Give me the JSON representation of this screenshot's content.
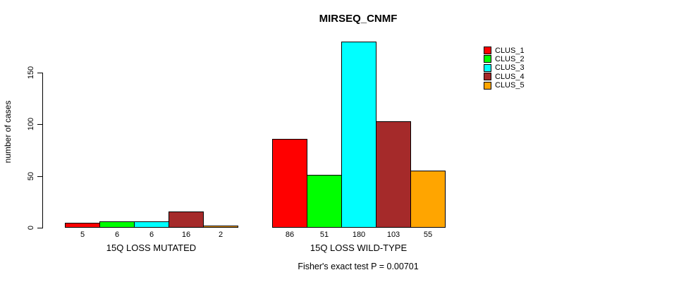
{
  "chart_data": {
    "type": "bar",
    "title": "MIRSEQ_CNMF",
    "ylabel": "number of cases",
    "ylim": [
      0,
      180
    ],
    "yticks": [
      0,
      50,
      100,
      150
    ],
    "grid": false,
    "legend_position": "right",
    "categories": [
      "15Q LOSS MUTATED",
      "15Q LOSS WILD-TYPE"
    ],
    "series": [
      {
        "name": "CLUS_1",
        "color": "#ff0000",
        "values": [
          5,
          86
        ]
      },
      {
        "name": "CLUS_2",
        "color": "#00ff00",
        "values": [
          6,
          51
        ]
      },
      {
        "name": "CLUS_3",
        "color": "#00ffff",
        "values": [
          6,
          180
        ]
      },
      {
        "name": "CLUS_4",
        "color": "#a52a2a",
        "values": [
          16,
          103
        ]
      },
      {
        "name": "CLUS_5",
        "color": "#ffa500",
        "values": [
          2,
          55
        ]
      }
    ],
    "bar_value_labels": {
      "15Q LOSS MUTATED": [
        5,
        6,
        6,
        16,
        2
      ],
      "15Q LOSS WILD-TYPE": [
        86,
        51,
        180,
        103,
        55
      ]
    },
    "annotation": "Fisher's exact test P = 0.00701"
  }
}
